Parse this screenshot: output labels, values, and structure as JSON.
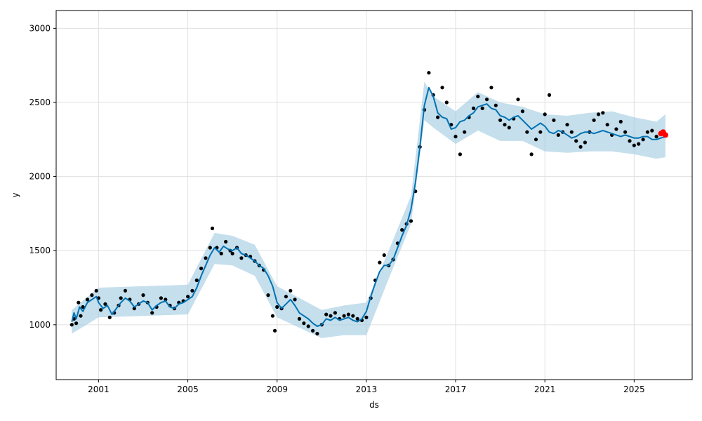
{
  "chart_data": {
    "type": "line",
    "title": "",
    "xlabel": "ds",
    "ylabel": "y",
    "xlim": [
      1999.1,
      2027.6
    ],
    "ylim": [
      630,
      3120
    ],
    "grid": true,
    "x_ticks": [
      2001,
      2005,
      2009,
      2013,
      2017,
      2021,
      2025
    ],
    "x_tick_labels": [
      "2001",
      "2005",
      "2009",
      "2013",
      "2017",
      "2021",
      "2025"
    ],
    "y_ticks": [
      1000,
      1500,
      2000,
      2500,
      3000
    ],
    "y_tick_labels": [
      "1000",
      "1500",
      "2000",
      "2500",
      "3000"
    ],
    "colors": {
      "observed": "#000000",
      "forecast": "#0072B2",
      "interval": "#9ecae1",
      "future": "#ff0000",
      "grid": "#e0e0e0"
    },
    "series": [
      {
        "role": "observed",
        "style": "points",
        "x": [
          1999.8,
          1999.9,
          2000.0,
          2000.1,
          2000.2,
          2000.3,
          2000.5,
          2000.7,
          2000.9,
          2001.0,
          2001.1,
          2001.3,
          2001.5,
          2001.7,
          2001.9,
          2002.0,
          2002.2,
          2002.4,
          2002.6,
          2002.8,
          2003.0,
          2003.2,
          2003.4,
          2003.6,
          2003.8,
          2004.0,
          2004.2,
          2004.4,
          2004.6,
          2004.8,
          2005.0,
          2005.2,
          2005.4,
          2005.6,
          2005.8,
          2006.0,
          2006.1,
          2006.3,
          2006.5,
          2006.7,
          2006.9,
          2007.0,
          2007.2,
          2007.4,
          2007.6,
          2007.8,
          2008.0,
          2008.2,
          2008.4,
          2008.6,
          2008.8,
          2008.9,
          2009.0,
          2009.2,
          2009.4,
          2009.6,
          2009.8,
          2010.0,
          2010.2,
          2010.4,
          2010.6,
          2010.8,
          2011.0,
          2011.2,
          2011.4,
          2011.6,
          2011.8,
          2012.0,
          2012.2,
          2012.4,
          2012.6,
          2012.8,
          2013.0,
          2013.2,
          2013.4,
          2013.6,
          2013.8,
          2014.0,
          2014.2,
          2014.4,
          2014.6,
          2014.8,
          2015.0,
          2015.2,
          2015.4,
          2015.6,
          2015.8,
          2016.0,
          2016.2,
          2016.4,
          2016.6,
          2016.8,
          2017.0,
          2017.2,
          2017.4,
          2017.6,
          2017.8,
          2018.0,
          2018.2,
          2018.4,
          2018.6,
          2018.8,
          2019.0,
          2019.2,
          2019.4,
          2019.6,
          2019.8,
          2020.0,
          2020.2,
          2020.4,
          2020.6,
          2020.8,
          2021.0,
          2021.2,
          2021.4,
          2021.6,
          2021.8,
          2022.0,
          2022.2,
          2022.4,
          2022.6,
          2022.8,
          2023.0,
          2023.2,
          2023.4,
          2023.6,
          2023.8,
          2024.0,
          2024.2,
          2024.4,
          2024.6,
          2024.8,
          2025.0,
          2025.2,
          2025.4,
          2025.6,
          2025.8,
          2026.0
        ],
        "y": [
          1000,
          1040,
          1010,
          1150,
          1060,
          1120,
          1170,
          1200,
          1230,
          1180,
          1100,
          1140,
          1050,
          1080,
          1130,
          1180,
          1230,
          1170,
          1110,
          1140,
          1200,
          1150,
          1080,
          1120,
          1180,
          1170,
          1130,
          1110,
          1150,
          1160,
          1190,
          1230,
          1300,
          1380,
          1450,
          1520,
          1650,
          1520,
          1480,
          1560,
          1500,
          1480,
          1520,
          1450,
          1470,
          1460,
          1430,
          1400,
          1370,
          1200,
          1060,
          960,
          1120,
          1110,
          1190,
          1230,
          1170,
          1040,
          1010,
          990,
          960,
          940,
          1000,
          1070,
          1060,
          1080,
          1040,
          1060,
          1070,
          1060,
          1040,
          1030,
          1050,
          1180,
          1300,
          1420,
          1470,
          1400,
          1440,
          1550,
          1640,
          1680,
          1700,
          1900,
          2200,
          2450,
          2700,
          2550,
          2400,
          2600,
          2500,
          2350,
          2270,
          2150,
          2300,
          2400,
          2460,
          2540,
          2460,
          2520,
          2600,
          2480,
          2380,
          2350,
          2330,
          2390,
          2520,
          2440,
          2300,
          2150,
          2250,
          2300,
          2420,
          2550,
          2380,
          2280,
          2300,
          2350,
          2300,
          2240,
          2200,
          2230,
          2300,
          2380,
          2420,
          2430,
          2350,
          2280,
          2320,
          2370,
          2300,
          2240,
          2210,
          2220,
          2250,
          2300,
          2310,
          2270
        ]
      },
      {
        "role": "forecast",
        "style": "line",
        "x": [
          1999.8,
          1999.9,
          2000.0,
          2000.15,
          2000.3,
          2000.5,
          2000.7,
          2000.9,
          2001.0,
          2001.2,
          2001.4,
          2001.6,
          2001.8,
          2002.0,
          2002.2,
          2002.4,
          2002.6,
          2002.8,
          2003.0,
          2003.2,
          2003.4,
          2003.6,
          2003.8,
          2004.0,
          2004.2,
          2004.4,
          2004.6,
          2004.8,
          2005.0,
          2005.2,
          2005.4,
          2005.6,
          2005.8,
          2006.0,
          2006.2,
          2006.4,
          2006.6,
          2006.8,
          2007.0,
          2007.2,
          2007.4,
          2007.6,
          2007.8,
          2008.0,
          2008.2,
          2008.4,
          2008.6,
          2008.8,
          2009.0,
          2009.2,
          2009.4,
          2009.6,
          2009.8,
          2010.0,
          2010.2,
          2010.4,
          2010.6,
          2010.8,
          2011.0,
          2011.2,
          2011.4,
          2011.6,
          2011.8,
          2012.0,
          2012.2,
          2012.4,
          2012.6,
          2012.8,
          2013.0,
          2013.2,
          2013.4,
          2013.6,
          2013.8,
          2014.0,
          2014.2,
          2014.4,
          2014.6,
          2014.8,
          2015.0,
          2015.2,
          2015.4,
          2015.6,
          2015.8,
          2016.0,
          2016.2,
          2016.4,
          2016.6,
          2016.8,
          2017.0,
          2017.2,
          2017.4,
          2017.6,
          2017.8,
          2018.0,
          2018.2,
          2018.4,
          2018.6,
          2018.8,
          2019.0,
          2019.2,
          2019.4,
          2019.6,
          2019.8,
          2020.0,
          2020.2,
          2020.4,
          2020.6,
          2020.8,
          2021.0,
          2021.2,
          2021.4,
          2021.6,
          2021.8,
          2022.0,
          2022.2,
          2022.4,
          2022.6,
          2022.8,
          2023.0,
          2023.2,
          2023.4,
          2023.6,
          2023.8,
          2024.0,
          2024.2,
          2024.4,
          2024.6,
          2024.8,
          2025.0,
          2025.2,
          2025.4,
          2025.6,
          2025.8,
          2026.0,
          2026.2,
          2026.4
        ],
        "y": [
          1020,
          1080,
          1040,
          1120,
          1090,
          1150,
          1170,
          1190,
          1150,
          1110,
          1130,
          1070,
          1110,
          1150,
          1180,
          1160,
          1120,
          1140,
          1160,
          1150,
          1100,
          1130,
          1150,
          1160,
          1120,
          1110,
          1140,
          1150,
          1170,
          1190,
          1250,
          1330,
          1400,
          1470,
          1520,
          1490,
          1530,
          1510,
          1500,
          1520,
          1480,
          1470,
          1450,
          1430,
          1400,
          1380,
          1330,
          1260,
          1150,
          1110,
          1140,
          1170,
          1130,
          1080,
          1060,
          1040,
          1010,
          990,
          1000,
          1040,
          1030,
          1050,
          1030,
          1040,
          1050,
          1030,
          1020,
          1040,
          1090,
          1190,
          1280,
          1360,
          1400,
          1400,
          1440,
          1520,
          1600,
          1670,
          1780,
          1960,
          2200,
          2480,
          2600,
          2540,
          2430,
          2400,
          2390,
          2320,
          2330,
          2370,
          2380,
          2410,
          2430,
          2470,
          2480,
          2490,
          2460,
          2450,
          2410,
          2400,
          2380,
          2400,
          2410,
          2380,
          2350,
          2320,
          2340,
          2360,
          2340,
          2300,
          2290,
          2310,
          2300,
          2280,
          2260,
          2270,
          2290,
          2300,
          2300,
          2290,
          2300,
          2310,
          2300,
          2290,
          2280,
          2270,
          2280,
          2270,
          2260,
          2260,
          2270,
          2270,
          2250,
          2250,
          2260,
          2270
        ]
      },
      {
        "role": "future",
        "style": "points",
        "x": [
          2026.2,
          2026.3,
          2026.4
        ],
        "y": [
          2290,
          2300,
          2280
        ]
      }
    ],
    "interval": {
      "x": [
        1999.8,
        2001.0,
        2003.0,
        2005.0,
        2006.2,
        2007.0,
        2008.0,
        2009.0,
        2010.0,
        2011.0,
        2012.0,
        2013.0,
        2014.0,
        2015.0,
        2015.6,
        2016.0,
        2017.0,
        2018.0,
        2019.0,
        2020.0,
        2021.0,
        2022.0,
        2023.0,
        2024.0,
        2025.0,
        2026.0,
        2026.4
      ],
      "lower": [
        940,
        1050,
        1060,
        1070,
        1410,
        1400,
        1330,
        1050,
        980,
        910,
        930,
        930,
        1310,
        1680,
        2380,
        2330,
        2220,
        2310,
        2240,
        2240,
        2170,
        2160,
        2170,
        2170,
        2150,
        2120,
        2130
      ],
      "upper": [
        1100,
        1250,
        1260,
        1270,
        1620,
        1600,
        1540,
        1260,
        1180,
        1100,
        1130,
        1150,
        1500,
        1870,
        2640,
        2540,
        2440,
        2570,
        2500,
        2470,
        2420,
        2410,
        2430,
        2440,
        2400,
        2370,
        2420
      ]
    }
  }
}
